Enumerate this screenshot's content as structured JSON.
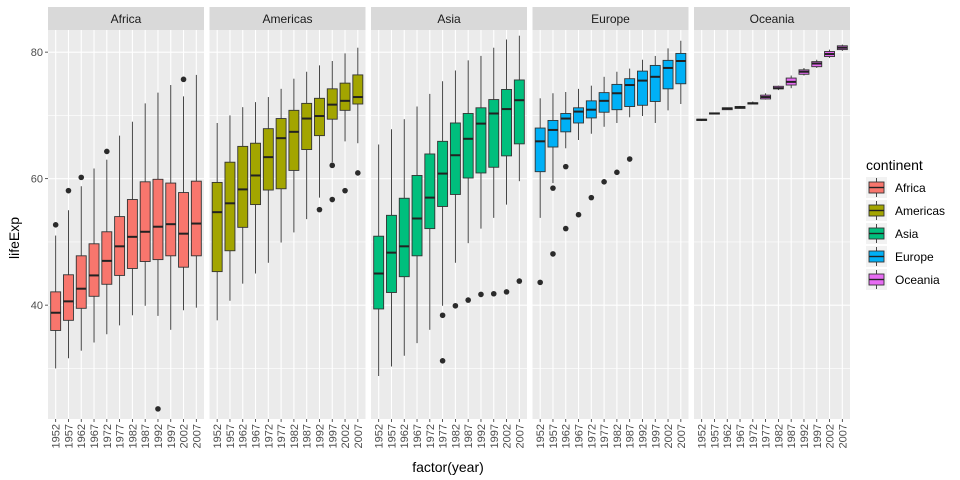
{
  "chart_data": {
    "type": "boxplot",
    "xlabel": "factor(year)",
    "ylabel": "lifeExp",
    "y_ticks": [
      40,
      60,
      80
    ],
    "ylim": [
      22,
      83.5
    ],
    "categories": [
      "1952",
      "1957",
      "1962",
      "1967",
      "1972",
      "1977",
      "1982",
      "1987",
      "1992",
      "1997",
      "2002",
      "2007"
    ],
    "legend": {
      "title": "continent",
      "position": "right",
      "items": [
        "Africa",
        "Americas",
        "Asia",
        "Europe",
        "Oceania"
      ]
    },
    "colors": {
      "Africa": "#F8766D",
      "Americas": "#A3A500",
      "Asia": "#00BF7D",
      "Europe": "#00B0F6",
      "Oceania": "#E76BF3",
      "panel_bg": "#EBEBEB",
      "strip_bg": "#D9D9D9",
      "grid": "#FFFFFF"
    },
    "facets": [
      {
        "name": "Africa",
        "boxes": [
          {
            "q1": 36.0,
            "med": 38.8,
            "q3": 42.1,
            "lo": 30.0,
            "hi": 51.0,
            "outliers": [
              52.7
            ]
          },
          {
            "q1": 37.6,
            "med": 40.6,
            "q3": 44.8,
            "lo": 31.6,
            "hi": 55.0,
            "outliers": [
              58.1
            ]
          },
          {
            "q1": 39.5,
            "med": 42.6,
            "q3": 47.8,
            "lo": 32.8,
            "hi": 58.8,
            "outliers": [
              60.2
            ]
          },
          {
            "q1": 41.4,
            "med": 44.7,
            "q3": 49.7,
            "lo": 34.1,
            "hi": 61.6,
            "outliers": []
          },
          {
            "q1": 43.3,
            "med": 47.0,
            "q3": 51.6,
            "lo": 35.4,
            "hi": 63.0,
            "outliers": [
              64.3
            ]
          },
          {
            "q1": 44.7,
            "med": 49.3,
            "q3": 54.0,
            "lo": 36.8,
            "hi": 66.8,
            "outliers": []
          },
          {
            "q1": 45.8,
            "med": 50.8,
            "q3": 56.7,
            "lo": 38.4,
            "hi": 69.0,
            "outliers": []
          },
          {
            "q1": 46.9,
            "med": 51.6,
            "q3": 59.5,
            "lo": 39.9,
            "hi": 71.9,
            "outliers": []
          },
          {
            "q1": 47.2,
            "med": 52.4,
            "q3": 59.9,
            "lo": 38.3,
            "hi": 73.6,
            "outliers": [
              23.6
            ]
          },
          {
            "q1": 47.8,
            "med": 52.8,
            "q3": 59.3,
            "lo": 36.1,
            "hi": 74.8,
            "outliers": []
          },
          {
            "q1": 46.0,
            "med": 51.3,
            "q3": 57.8,
            "lo": 39.2,
            "hi": 73.0,
            "outliers": [
              75.7
            ]
          },
          {
            "q1": 47.8,
            "med": 52.9,
            "q3": 59.6,
            "lo": 39.6,
            "hi": 76.4,
            "outliers": []
          }
        ]
      },
      {
        "name": "Americas",
        "boxes": [
          {
            "q1": 45.3,
            "med": 54.7,
            "q3": 59.4,
            "lo": 37.6,
            "hi": 68.8,
            "outliers": []
          },
          {
            "q1": 48.6,
            "med": 56.1,
            "q3": 62.6,
            "lo": 40.7,
            "hi": 70.0,
            "outliers": []
          },
          {
            "q1": 52.3,
            "med": 58.3,
            "q3": 65.1,
            "lo": 43.4,
            "hi": 71.3,
            "outliers": []
          },
          {
            "q1": 55.9,
            "med": 60.5,
            "q3": 65.6,
            "lo": 45.0,
            "hi": 72.1,
            "outliers": []
          },
          {
            "q1": 58.2,
            "med": 63.4,
            "q3": 67.9,
            "lo": 46.7,
            "hi": 72.9,
            "outliers": []
          },
          {
            "q1": 58.4,
            "med": 66.4,
            "q3": 69.5,
            "lo": 49.9,
            "hi": 74.2,
            "outliers": []
          },
          {
            "q1": 61.3,
            "med": 67.4,
            "q3": 70.8,
            "lo": 51.5,
            "hi": 75.8,
            "outliers": []
          },
          {
            "q1": 64.6,
            "med": 69.5,
            "q3": 71.9,
            "lo": 53.6,
            "hi": 76.9,
            "outliers": []
          },
          {
            "q1": 66.8,
            "med": 69.9,
            "q3": 72.7,
            "lo": 57.0,
            "hi": 77.9,
            "outliers": [
              55.1
            ]
          },
          {
            "q1": 69.4,
            "med": 71.7,
            "q3": 74.2,
            "lo": 62.6,
            "hi": 78.6,
            "outliers": [
              62.1,
              56.7
            ]
          },
          {
            "q1": 70.8,
            "med": 72.3,
            "q3": 75.1,
            "lo": 65.9,
            "hi": 79.8,
            "outliers": [
              58.1
            ]
          },
          {
            "q1": 71.8,
            "med": 72.9,
            "q3": 76.4,
            "lo": 65.6,
            "hi": 80.7,
            "outliers": [
              60.9
            ]
          }
        ]
      },
      {
        "name": "Asia",
        "boxes": [
          {
            "q1": 39.4,
            "med": 45.0,
            "q3": 50.9,
            "lo": 28.8,
            "hi": 65.4,
            "outliers": []
          },
          {
            "q1": 42.0,
            "med": 48.3,
            "q3": 54.2,
            "lo": 30.3,
            "hi": 67.8,
            "outliers": []
          },
          {
            "q1": 44.5,
            "med": 49.3,
            "q3": 56.9,
            "lo": 32.0,
            "hi": 69.4,
            "outliers": []
          },
          {
            "q1": 47.8,
            "med": 53.7,
            "q3": 60.5,
            "lo": 34.0,
            "hi": 71.4,
            "outliers": []
          },
          {
            "q1": 52.1,
            "med": 57.0,
            "q3": 63.9,
            "lo": 36.1,
            "hi": 73.4,
            "outliers": []
          },
          {
            "q1": 55.6,
            "med": 60.8,
            "q3": 65.9,
            "lo": 39.9,
            "hi": 75.4,
            "outliers": [
              38.4,
              31.2
            ]
          },
          {
            "q1": 57.5,
            "med": 63.7,
            "q3": 68.8,
            "lo": 46.7,
            "hi": 77.1,
            "outliers": [
              39.9
            ]
          },
          {
            "q1": 60.1,
            "med": 66.3,
            "q3": 70.3,
            "lo": 49.8,
            "hi": 78.7,
            "outliers": [
              40.8
            ]
          },
          {
            "q1": 60.9,
            "med": 68.7,
            "q3": 71.2,
            "lo": 52.1,
            "hi": 79.4,
            "outliers": [
              41.7
            ]
          },
          {
            "q1": 61.8,
            "med": 70.3,
            "q3": 72.5,
            "lo": 53.8,
            "hi": 80.7,
            "outliers": [
              41.8
            ]
          },
          {
            "q1": 63.6,
            "med": 71.0,
            "q3": 74.1,
            "lo": 55.9,
            "hi": 82.0,
            "outliers": [
              42.1
            ]
          },
          {
            "q1": 65.5,
            "med": 72.4,
            "q3": 75.6,
            "lo": 59.6,
            "hi": 82.6,
            "outliers": [
              43.8
            ]
          }
        ]
      },
      {
        "name": "Europe",
        "boxes": [
          {
            "q1": 61.1,
            "med": 65.9,
            "q3": 68.0,
            "lo": 53.8,
            "hi": 72.7,
            "outliers": [
              43.6
            ]
          },
          {
            "q1": 65.0,
            "med": 67.7,
            "q3": 69.2,
            "lo": 59.3,
            "hi": 73.5,
            "outliers": [
              48.1,
              58.5
            ]
          },
          {
            "q1": 67.4,
            "med": 69.5,
            "q3": 70.3,
            "lo": 64.8,
            "hi": 73.7,
            "outliers": [
              52.1,
              61.9
            ]
          },
          {
            "q1": 68.8,
            "med": 70.6,
            "q3": 71.2,
            "lo": 66.1,
            "hi": 74.2,
            "outliers": [
              54.3
            ]
          },
          {
            "q1": 69.6,
            "med": 70.9,
            "q3": 72.3,
            "lo": 67.1,
            "hi": 74.7,
            "outliers": [
              57.0
            ]
          },
          {
            "q1": 70.5,
            "med": 72.3,
            "q3": 73.6,
            "lo": 68.2,
            "hi": 76.1,
            "outliers": [
              59.5
            ]
          },
          {
            "q1": 70.9,
            "med": 73.5,
            "q3": 74.9,
            "lo": 68.8,
            "hi": 76.9,
            "outliers": [
              61.0
            ]
          },
          {
            "q1": 71.4,
            "med": 74.8,
            "q3": 75.8,
            "lo": 69.7,
            "hi": 77.4,
            "outliers": [
              63.1
            ]
          },
          {
            "q1": 71.6,
            "med": 75.5,
            "q3": 77.0,
            "lo": 69.9,
            "hi": 78.8,
            "outliers": []
          },
          {
            "q1": 72.2,
            "med": 76.1,
            "q3": 77.9,
            "lo": 68.8,
            "hi": 79.4,
            "outliers": []
          },
          {
            "q1": 74.2,
            "med": 77.5,
            "q3": 78.7,
            "lo": 70.8,
            "hi": 80.6,
            "outliers": []
          },
          {
            "q1": 75.0,
            "med": 78.6,
            "q3": 79.8,
            "lo": 71.8,
            "hi": 81.8,
            "outliers": []
          }
        ]
      },
      {
        "name": "Oceania",
        "boxes": [
          {
            "q1": 69.2,
            "med": 69.3,
            "q3": 69.4,
            "lo": 69.1,
            "hi": 69.4,
            "outliers": []
          },
          {
            "q1": 70.3,
            "med": 70.3,
            "q3": 70.4,
            "lo": 70.3,
            "hi": 70.4,
            "outliers": []
          },
          {
            "q1": 70.9,
            "med": 71.1,
            "q3": 71.2,
            "lo": 70.9,
            "hi": 71.2,
            "outliers": []
          },
          {
            "q1": 71.1,
            "med": 71.3,
            "q3": 71.4,
            "lo": 71.1,
            "hi": 71.5,
            "outliers": []
          },
          {
            "q1": 71.8,
            "med": 71.9,
            "q3": 72.0,
            "lo": 71.8,
            "hi": 72.2,
            "outliers": []
          },
          {
            "q1": 72.6,
            "med": 72.9,
            "q3": 73.2,
            "lo": 72.5,
            "hi": 73.5,
            "outliers": []
          },
          {
            "q1": 74.2,
            "med": 74.3,
            "q3": 74.6,
            "lo": 74.0,
            "hi": 74.7,
            "outliers": []
          },
          {
            "q1": 74.8,
            "med": 75.3,
            "q3": 75.9,
            "lo": 74.3,
            "hi": 76.3,
            "outliers": []
          },
          {
            "q1": 76.5,
            "med": 76.9,
            "q3": 77.2,
            "lo": 76.3,
            "hi": 77.5,
            "outliers": []
          },
          {
            "q1": 77.7,
            "med": 78.2,
            "q3": 78.5,
            "lo": 77.5,
            "hi": 78.8,
            "outliers": []
          },
          {
            "q1": 79.3,
            "med": 79.7,
            "q3": 80.1,
            "lo": 79.1,
            "hi": 80.4,
            "outliers": []
          },
          {
            "q1": 80.4,
            "med": 80.7,
            "q3": 81.0,
            "lo": 80.2,
            "hi": 81.2,
            "outliers": []
          }
        ]
      }
    ]
  }
}
